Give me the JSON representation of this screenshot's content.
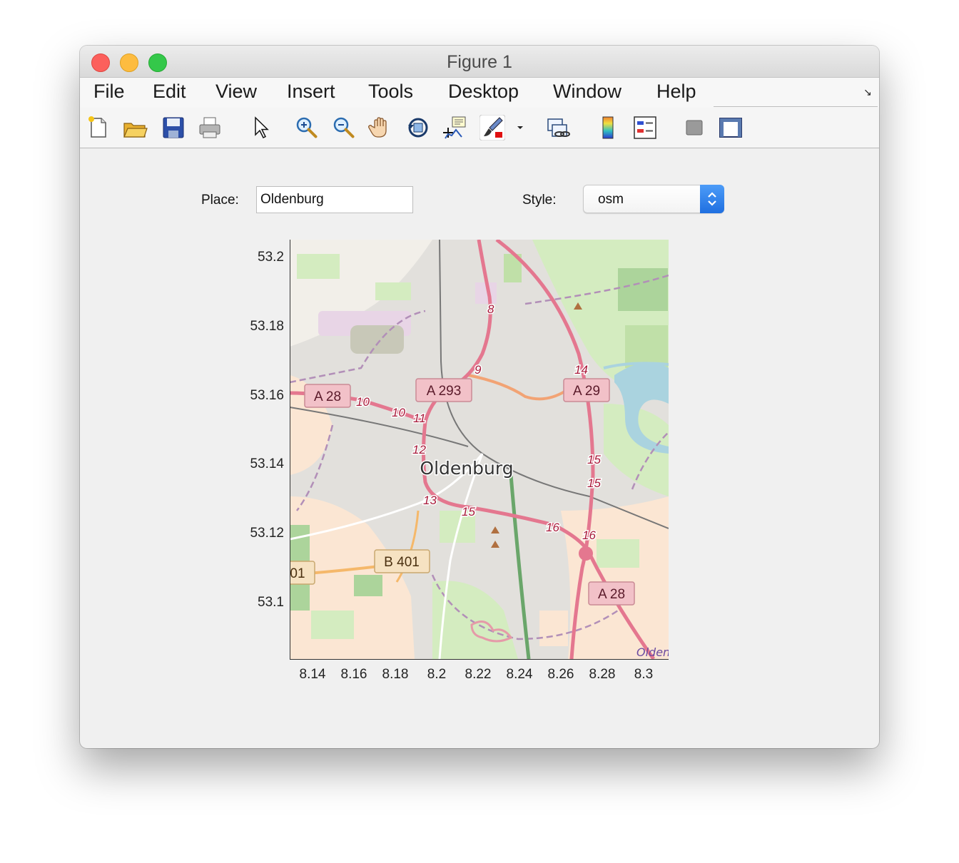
{
  "window": {
    "title": "Figure 1"
  },
  "menubar": {
    "items": [
      "File",
      "Edit",
      "View",
      "Insert",
      "Tools",
      "Desktop",
      "Window",
      "Help"
    ]
  },
  "toolbar": {
    "icons": [
      "new-figure-icon",
      "open-file-icon",
      "save-icon",
      "print-icon",
      "edit-plot-arrow-icon",
      "zoom-in-icon",
      "zoom-out-icon",
      "pan-hand-icon",
      "rotate-3d-icon",
      "data-cursor-icon",
      "brush-icon",
      "brush-dropdown-icon",
      "link-plot-icon",
      "colorbar-icon",
      "legend-icon",
      "hide-plot-tools-icon",
      "show-plot-tools-icon"
    ]
  },
  "controls": {
    "place_label": "Place:",
    "place_value": "Oldenburg",
    "style_label": "Style:",
    "style_value": "osm"
  },
  "map": {
    "city_label": "Oldenburg",
    "road_shields": [
      "A 28",
      "A 293",
      "A 29",
      "B 401",
      "01",
      "A 28"
    ],
    "junction_numbers": [
      "8",
      "9",
      "10",
      "10",
      "11",
      "12",
      "13",
      "14",
      "15",
      "15",
      "15",
      "16",
      "16"
    ],
    "attribution_fragment": "Olden",
    "colors": {
      "land": "#e2e0dc",
      "residential": "#fbe6d3",
      "forest": "#acd49b",
      "grass": "#d4ecc0",
      "motorway": "#e4778f",
      "trunk": "#f2a374",
      "river": "#aad3df",
      "shield_motorway": "#f2c1c8",
      "shield_federal": "#f6e2c2"
    }
  },
  "axes": {
    "y_ticks": [
      "53.2",
      "53.18",
      "53.16",
      "53.14",
      "53.12",
      "53.1"
    ],
    "x_ticks": [
      "8.14",
      "8.16",
      "8.18",
      "8.2",
      "8.22",
      "8.24",
      "8.26",
      "8.28",
      "8.3"
    ]
  }
}
